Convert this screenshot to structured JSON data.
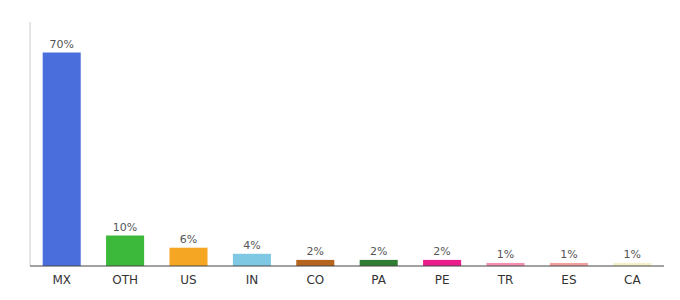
{
  "chart_data": {
    "type": "bar",
    "categories": [
      "MX",
      "OTH",
      "US",
      "IN",
      "CO",
      "PA",
      "PE",
      "TR",
      "ES",
      "CA"
    ],
    "values": [
      70,
      10,
      6,
      4,
      2,
      2,
      2,
      1,
      1,
      1
    ],
    "value_labels": [
      "70%",
      "10%",
      "6%",
      "4%",
      "2%",
      "2%",
      "2%",
      "1%",
      "1%",
      "1%"
    ],
    "colors": [
      "#4a6fdc",
      "#3cb83a",
      "#f5a623",
      "#7ec8e3",
      "#b5651d",
      "#2e7d32",
      "#e91e8c",
      "#f48fb1",
      "#f4a0a0",
      "#f5f0c8"
    ],
    "ylim": [
      0,
      80
    ],
    "data_labels": true,
    "tick_labels": "x"
  }
}
